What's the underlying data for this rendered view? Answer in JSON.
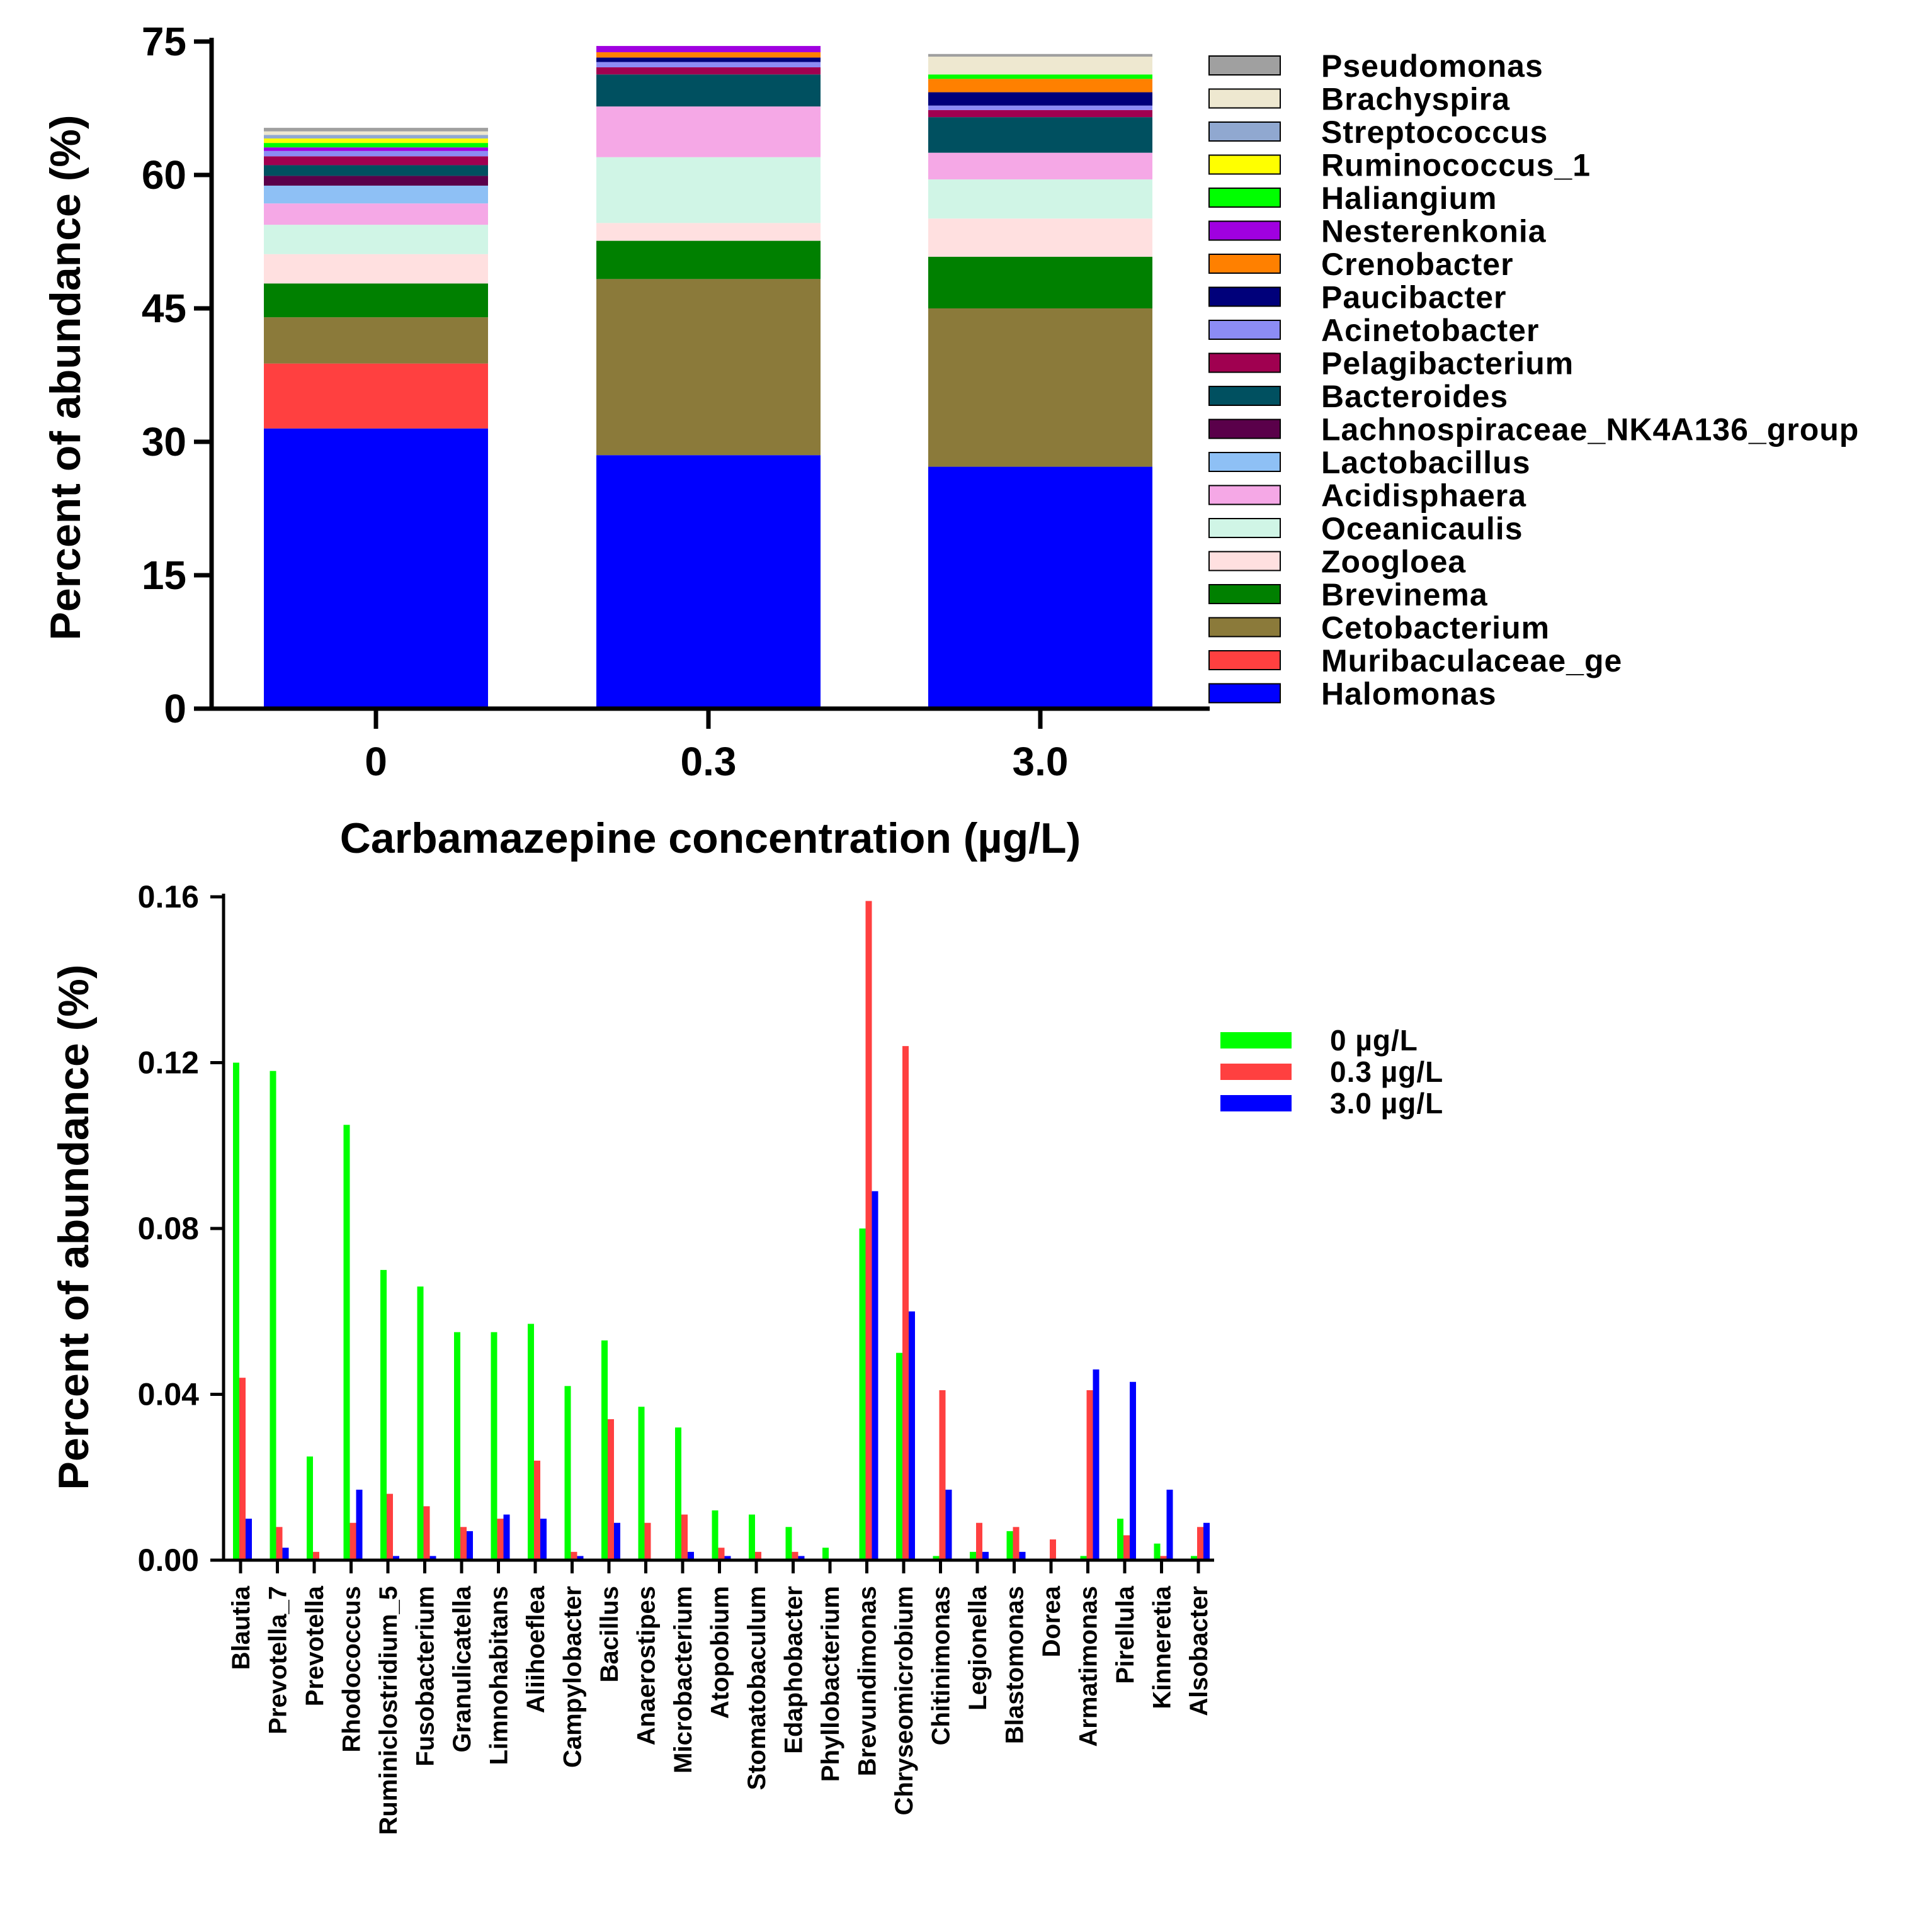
{
  "chart_data": [
    {
      "type": "bar",
      "stacked": true,
      "categories": [
        "0",
        "0.3",
        "3.0"
      ],
      "xlabel": "Carbamazepine concentration (µg/L)",
      "ylabel": "Percent of abundance (%)",
      "ylim": [
        0,
        75
      ],
      "yticks": [
        "0",
        "15",
        "30",
        "45",
        "60",
        "75"
      ],
      "yticks_values": [
        0,
        15,
        30,
        45,
        60,
        75
      ],
      "grid": false,
      "legend_position": "right",
      "series": [
        {
          "name": "Halomonas",
          "color": "#0000FF",
          "values": [
            31.5,
            28.5,
            27.2
          ]
        },
        {
          "name": "Muribaculaceae_ge",
          "color": "#FF4040",
          "values": [
            7.3,
            0.0,
            0.0
          ]
        },
        {
          "name": "Cetobacterium",
          "color": "#8B7A3A",
          "values": [
            5.2,
            19.8,
            17.8
          ]
        },
        {
          "name": "Brevinema",
          "color": "#008000",
          "values": [
            3.8,
            4.3,
            5.8
          ]
        },
        {
          "name": "Zoogloea",
          "color": "#FFE0E0",
          "values": [
            3.3,
            2.0,
            4.3
          ]
        },
        {
          "name": "Oceanicaulis",
          "color": "#D0F5E6",
          "values": [
            3.3,
            7.4,
            4.4
          ]
        },
        {
          "name": "Acidisphaera",
          "color": "#F5A8E6",
          "values": [
            2.4,
            5.7,
            3.0
          ]
        },
        {
          "name": "Lactobacillus",
          "color": "#8EC0F5",
          "values": [
            2.0,
            0.0,
            0.0
          ]
        },
        {
          "name": "Lachnospiraceae_NK4A136_group",
          "color": "#5A004A",
          "values": [
            1.1,
            0.0,
            0.0
          ]
        },
        {
          "name": "Bacteroides",
          "color": "#005060",
          "values": [
            1.2,
            3.6,
            4.0
          ]
        },
        {
          "name": "Pelagibacterium",
          "color": "#A00050",
          "values": [
            1.0,
            0.8,
            0.8
          ]
        },
        {
          "name": "Acinetobacter",
          "color": "#8C8CF5",
          "values": [
            0.6,
            0.6,
            0.5
          ]
        },
        {
          "name": "Paucibacter",
          "color": "#00007A",
          "values": [
            0.0,
            0.5,
            1.5
          ]
        },
        {
          "name": "Crenobacter",
          "color": "#FF8000",
          "values": [
            0.0,
            0.6,
            1.5
          ]
        },
        {
          "name": "Nesterenkonia",
          "color": "#A000E0",
          "values": [
            0.4,
            0.7,
            0.0
          ]
        },
        {
          "name": "Haliangium",
          "color": "#00FF00",
          "values": [
            0.5,
            0.0,
            0.5
          ]
        },
        {
          "name": "Ruminococcus_1",
          "color": "#FFFF00",
          "values": [
            0.5,
            0.0,
            0.0
          ]
        },
        {
          "name": "Streptococcus",
          "color": "#90A8D0",
          "values": [
            0.4,
            0.0,
            0.0
          ]
        },
        {
          "name": "Brachyspira",
          "color": "#EEE8D0",
          "values": [
            0.4,
            0.0,
            2.0
          ]
        },
        {
          "name": "Pseudomonas",
          "color": "#A0A0A0",
          "values": [
            0.4,
            0.0,
            0.3
          ]
        }
      ]
    },
    {
      "type": "bar",
      "stacked": false,
      "categories": [
        "Blautia",
        "Prevotella_7",
        "Prevotella",
        "Rhodococcus",
        "Ruminiclostridium_5",
        "Fusobacterium",
        "Granulicatella",
        "Limnohabitans",
        "Aliihoeflea",
        "Campylobacter",
        "Bacillus",
        "Anaerostipes",
        "Microbacterium",
        "Atopobium",
        "Stomatobaculum",
        "Edaphobacter",
        "Phyllobacterium",
        "Brevundimonas",
        "Chryseomicrobium",
        "Chitinimonas",
        "Legionella",
        "Blastomonas",
        "Dorea",
        "Armatimonas",
        "Pirellula",
        "Kinneretia",
        "Alsobacter"
      ],
      "ylabel": "Percent of abundance (%)",
      "xlabel": "",
      "ylim": [
        0,
        0.16
      ],
      "yticks": [
        "0.00",
        "0.04",
        "0.08",
        "0.12",
        "0.16"
      ],
      "yticks_values": [
        0,
        0.04,
        0.08,
        0.12,
        0.16
      ],
      "grid": false,
      "legend_position": "top-right",
      "series": [
        {
          "name": "0 µg/L",
          "color": "#00FF00",
          "values": [
            0.12,
            0.118,
            0.025,
            0.105,
            0.07,
            0.066,
            0.055,
            0.055,
            0.057,
            0.042,
            0.053,
            0.037,
            0.032,
            0.012,
            0.011,
            0.008,
            0.003,
            0.08,
            0.05,
            0.001,
            0.002,
            0.007,
            0.0,
            0.001,
            0.01,
            0.004,
            0.001
          ]
        },
        {
          "name": "0.3 µg/L",
          "color": "#FF4040",
          "values": [
            0.044,
            0.008,
            0.002,
            0.009,
            0.016,
            0.013,
            0.008,
            0.01,
            0.024,
            0.002,
            0.034,
            0.009,
            0.011,
            0.003,
            0.002,
            0.002,
            0.0,
            0.159,
            0.124,
            0.041,
            0.009,
            0.008,
            0.005,
            0.041,
            0.006,
            0.001,
            0.008
          ]
        },
        {
          "name": "3.0 µg/L",
          "color": "#0000FF",
          "values": [
            0.01,
            0.003,
            0.0,
            0.017,
            0.001,
            0.001,
            0.007,
            0.011,
            0.01,
            0.001,
            0.009,
            0.0,
            0.002,
            0.001,
            0.0,
            0.001,
            0.0,
            0.089,
            0.06,
            0.017,
            0.002,
            0.002,
            0.0,
            0.046,
            0.043,
            0.017,
            0.009
          ]
        }
      ]
    }
  ]
}
